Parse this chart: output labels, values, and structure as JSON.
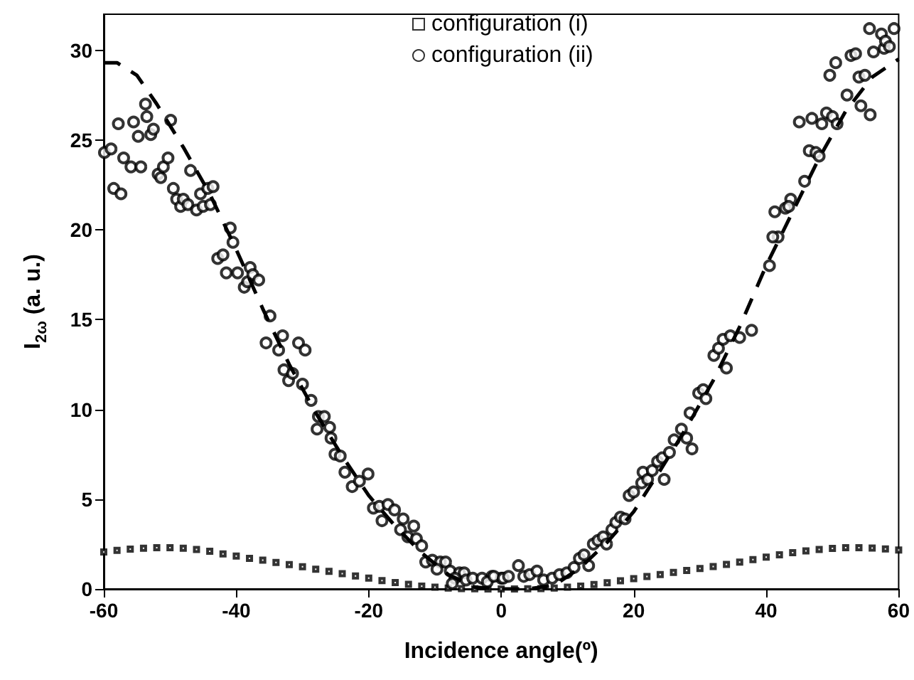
{
  "chart_data": {
    "type": "scatter",
    "xlabel": "Incidence angle(º)",
    "ylabel": "I$_{2ω}$ (a. u.)",
    "xlim": [
      -60,
      60
    ],
    "xticks": [
      -60,
      -40,
      -20,
      0,
      20,
      40,
      60
    ],
    "ylim": [
      0,
      32
    ],
    "yticks": [
      0,
      5,
      10,
      15,
      20,
      25,
      30
    ],
    "grid": false,
    "legend": "top",
    "series": [
      {
        "name": "configuration (i)",
        "marker": "square",
        "color": "#000000",
        "x": [
          -60,
          -58,
          -56,
          -54,
          -52,
          -50,
          -48,
          -46,
          -44,
          -42,
          -40,
          -38,
          -36,
          -34,
          -32,
          -30,
          -28,
          -26,
          -24,
          -22,
          -20,
          -18,
          -16,
          -14,
          -12,
          -10,
          -8,
          -6,
          -4,
          -2,
          0,
          2,
          4,
          6,
          8,
          10,
          12,
          14,
          16,
          18,
          20,
          22,
          24,
          26,
          28,
          30,
          32,
          34,
          36,
          38,
          40,
          42,
          44,
          46,
          48,
          50,
          52,
          54,
          56,
          58,
          60
        ],
        "values": [
          2.06,
          2.15,
          2.22,
          2.27,
          2.3,
          2.3,
          2.27,
          2.2,
          2.1,
          1.95,
          1.83,
          1.7,
          1.6,
          1.48,
          1.36,
          1.24,
          1.1,
          0.98,
          0.85,
          0.72,
          0.6,
          0.47,
          0.36,
          0.26,
          0.16,
          0.1,
          0.05,
          0.02,
          0.01,
          0,
          0,
          0,
          0.01,
          0.02,
          0.05,
          0.1,
          0.16,
          0.25,
          0.35,
          0.46,
          0.57,
          0.69,
          0.8,
          0.92,
          1.03,
          1.14,
          1.25,
          1.37,
          1.5,
          1.63,
          1.77,
          1.9,
          2.02,
          2.12,
          2.2,
          2.26,
          2.3,
          2.3,
          2.28,
          2.23,
          2.17
        ]
      },
      {
        "name": "configuration (ii)",
        "marker": "circle",
        "color": "#000000",
        "x": [
          -59.9,
          -58.9,
          -58.5,
          -57.4,
          -57.8,
          -57,
          -55.9,
          -55.5,
          -54.8,
          -54.4,
          -53.7,
          -53.5,
          -52.9,
          -52.5,
          -51.8,
          -51.4,
          -51,
          -50.3,
          -49.9,
          -49.5,
          -49,
          -48.4,
          -48,
          -47.3,
          -46.9,
          -46,
          -45.4,
          -45,
          -44.3,
          -43.9,
          -43.5,
          -42.8,
          -42,
          -41.5,
          -40.9,
          -40.5,
          -39.8,
          -38.8,
          -38.3,
          -37.9,
          -37.5,
          -36.6,
          -34.9,
          -35.5,
          -33.6,
          -33,
          -30.6,
          -29.6,
          -32.8,
          -32.1,
          -31.5,
          -30,
          -28.7,
          -27.6,
          -26.7,
          -27.8,
          -25.9,
          -25.7,
          -25.1,
          -24.3,
          -23.6,
          -22.5,
          -21.4,
          -20.1,
          -19.3,
          -18.4,
          -18,
          -17.1,
          -16.1,
          -15.2,
          -14.8,
          -14.1,
          -13.2,
          -12.8,
          -12,
          -11.4,
          -10.4,
          -9.2,
          -8.4,
          -9.7,
          -7.7,
          -6.3,
          -5.6,
          -7,
          -5.3,
          -4.3,
          -2.9,
          -1.4,
          0,
          -7.4,
          -2.1,
          -1.1,
          0.3,
          1.1,
          2.6,
          3.4,
          4.3,
          5.4,
          6.4,
          7.7,
          8.8,
          9.9,
          11,
          11.8,
          12.5,
          13.2,
          13.9,
          14.6,
          15.4,
          15.9,
          16.7,
          17.3,
          18,
          18.7,
          19.3,
          20,
          21.2,
          21.4,
          22.1,
          22.8,
          23.6,
          24.3,
          24.6,
          25.4,
          26.1,
          27.2,
          28,
          28.8,
          28.5,
          29.8,
          30.5,
          30.9,
          32.1,
          32.8,
          33.5,
          34.6,
          34,
          36,
          37.8,
          40.5,
          41.8,
          41,
          41.3,
          42.9,
          43.7,
          43.4,
          45.8,
          46.5,
          47.5,
          48,
          45,
          46.9,
          48.4,
          49.1,
          50,
          50.7,
          52.2,
          54.3,
          55.7,
          54,
          54.9,
          49.6,
          50.5,
          52.8,
          53.5,
          56.2,
          57.8,
          57.4,
          58,
          58.6,
          59.3,
          55.6
        ],
        "values": [
          24.3,
          24.5,
          22.3,
          22,
          25.9,
          24,
          23.5,
          26,
          25.2,
          23.5,
          27,
          26.3,
          25.3,
          25.6,
          23.1,
          22.9,
          23.5,
          24,
          26.1,
          22.3,
          21.7,
          21.3,
          21.7,
          21.4,
          23.3,
          21.1,
          22,
          21.3,
          22.3,
          21.4,
          22.4,
          18.4,
          18.6,
          17.6,
          20.1,
          19.3,
          17.6,
          16.8,
          17.1,
          17.9,
          17.5,
          17.2,
          15.2,
          13.7,
          13.3,
          14.1,
          13.7,
          13.3,
          12.2,
          11.6,
          12,
          11.4,
          10.5,
          9.6,
          9.6,
          8.9,
          9,
          8.4,
          7.5,
          7.4,
          6.5,
          5.7,
          6,
          6.4,
          4.5,
          4.6,
          3.8,
          4.7,
          4.4,
          3.3,
          3.9,
          2.9,
          3.5,
          2.8,
          2.4,
          1.5,
          1.6,
          1.5,
          1.5,
          1.1,
          1,
          0.9,
          0.9,
          0.6,
          0.5,
          0.6,
          0.6,
          0.7,
          0.6,
          0.3,
          0.4,
          0.7,
          0.6,
          0.7,
          1.3,
          0.7,
          0.8,
          1,
          0.5,
          0.6,
          0.8,
          0.9,
          1.2,
          1.7,
          1.9,
          1.3,
          2.5,
          2.7,
          2.9,
          2.5,
          3.3,
          3.7,
          4,
          3.9,
          5.2,
          5.4,
          5.9,
          6.5,
          6.1,
          6.6,
          7.1,
          7.3,
          6.1,
          7.6,
          8.3,
          8.9,
          8.4,
          7.8,
          9.8,
          10.9,
          11.1,
          10.6,
          13,
          13.4,
          13.9,
          14.1,
          12.3,
          14,
          14.4,
          18,
          19.6,
          19.6,
          21,
          21.2,
          21.7,
          21.3,
          22.7,
          24.4,
          24.3,
          24.1,
          26,
          26.2,
          25.9,
          26.5,
          26.3,
          25.9,
          27.5,
          26.9,
          26.4,
          28.5,
          28.6,
          28.6,
          29.3,
          29.7,
          29.8,
          29.9,
          30.1,
          30.9,
          30.5,
          30.2,
          31.2,
          31.2
        ]
      },
      {
        "type": "line",
        "marker": "none",
        "line_style": "dashed",
        "color": "#000000",
        "x": [
          -60,
          -58,
          -55,
          -52,
          -48,
          -44,
          -40,
          -36,
          -32,
          -28,
          -24,
          -20,
          -16,
          -12,
          -8,
          -4,
          0,
          4,
          8,
          12,
          16,
          20,
          24,
          28,
          32,
          36,
          40,
          44,
          48,
          52,
          56,
          60
        ],
        "values": [
          29.3,
          29.3,
          28.6,
          27,
          24.6,
          22,
          18.9,
          15.6,
          12.5,
          9.8,
          7.4,
          5.2,
          3.5,
          2,
          0.8,
          0.1,
          0,
          0,
          0.2,
          1.2,
          2.6,
          4.3,
          6.6,
          9,
          11.6,
          14.6,
          18,
          21,
          24,
          26.6,
          28.5,
          29.5
        ]
      }
    ]
  }
}
